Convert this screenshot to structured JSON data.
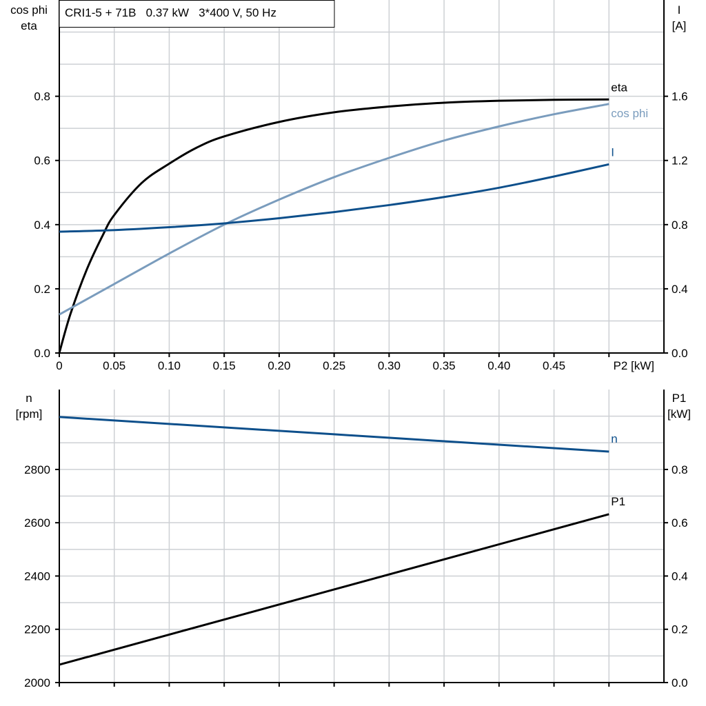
{
  "chart_data": [
    {
      "type": "line",
      "title": "CRI1-5 + 71B   0.37 kW   3*400 V, 50 Hz",
      "xlabel": "P2 [kW]",
      "ylabel_left": [
        "cos phi",
        "eta"
      ],
      "ylabel_right": [
        "I",
        "[A]"
      ],
      "xlim": [
        0,
        0.55
      ],
      "ylim_left": [
        0,
        1.1
      ],
      "ylim_right": [
        0,
        2.2
      ],
      "x_ticks": [
        "0",
        "0.05",
        "0.10",
        "0.15",
        "0.20",
        "0.25",
        "0.30",
        "0.35",
        "0.40",
        "0.45"
      ],
      "y_ticks_left": [
        "0.0",
        "0.2",
        "0.4",
        "0.6",
        "0.8"
      ],
      "y_ticks_right": [
        "0.0",
        "0.4",
        "0.8",
        "1.2",
        "1.6"
      ],
      "grid": true,
      "series": [
        {
          "name": "eta",
          "axis": "left",
          "color": "#000000",
          "x": [
            0,
            0.01,
            0.025,
            0.04,
            0.05,
            0.075,
            0.1,
            0.125,
            0.15,
            0.2,
            0.25,
            0.3,
            0.35,
            0.4,
            0.45,
            0.5
          ],
          "y": [
            0,
            0.12,
            0.26,
            0.37,
            0.43,
            0.53,
            0.59,
            0.64,
            0.675,
            0.72,
            0.75,
            0.768,
            0.78,
            0.786,
            0.789,
            0.79
          ]
        },
        {
          "name": "cos phi",
          "axis": "left",
          "color": "#7a9cbd",
          "x": [
            0,
            0.05,
            0.1,
            0.15,
            0.2,
            0.25,
            0.3,
            0.35,
            0.4,
            0.45,
            0.5
          ],
          "y": [
            0.12,
            0.215,
            0.31,
            0.4,
            0.478,
            0.548,
            0.608,
            0.662,
            0.706,
            0.744,
            0.776
          ]
        },
        {
          "name": "I",
          "axis": "right",
          "color": "#0d4f8b",
          "x": [
            0,
            0.05,
            0.1,
            0.15,
            0.2,
            0.25,
            0.3,
            0.35,
            0.4,
            0.45,
            0.5
          ],
          "y": [
            0.756,
            0.766,
            0.784,
            0.808,
            0.84,
            0.878,
            0.922,
            0.972,
            1.03,
            1.1,
            1.176
          ]
        }
      ]
    },
    {
      "type": "line",
      "xlim": [
        0,
        0.55
      ],
      "ylabel_left": [
        "n",
        "[rpm]"
      ],
      "ylabel_right": [
        "P1",
        "[kW]"
      ],
      "ylim_left": [
        2000,
        3100
      ],
      "ylim_right": [
        0,
        1.1
      ],
      "y_ticks_left": [
        "2000",
        "2200",
        "2400",
        "2600",
        "2800"
      ],
      "y_ticks_right": [
        "0.0",
        "0.2",
        "0.4",
        "0.6",
        "0.8"
      ],
      "grid": true,
      "series": [
        {
          "name": "n",
          "axis": "left",
          "color": "#0d4f8b",
          "x": [
            0,
            0.5
          ],
          "y": [
            2997,
            2867
          ]
        },
        {
          "name": "P1",
          "axis": "right",
          "color": "#000000",
          "x": [
            0,
            0.5
          ],
          "y": [
            0.067,
            0.632
          ]
        }
      ]
    }
  ]
}
